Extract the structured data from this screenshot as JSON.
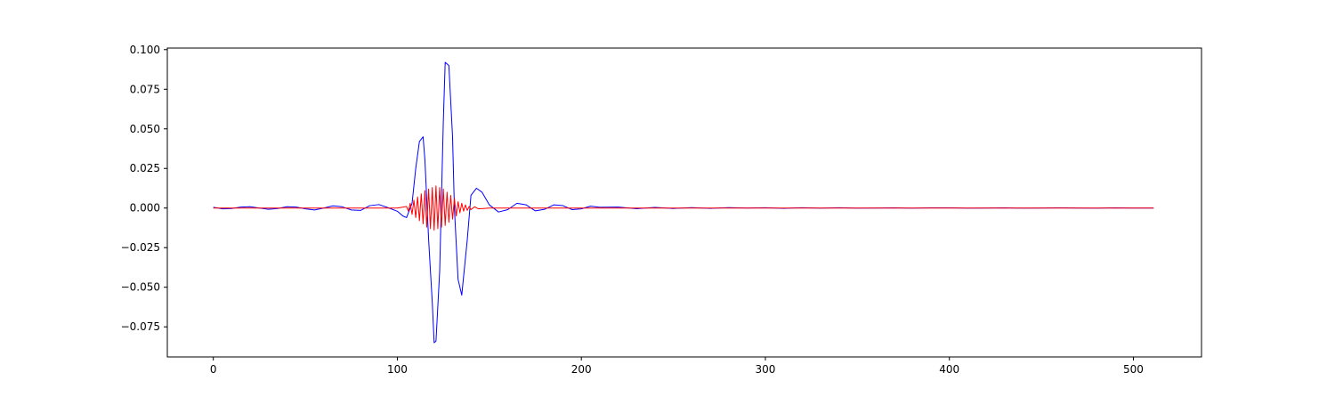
{
  "chart_data": {
    "type": "line",
    "title": "",
    "xlabel": "",
    "ylabel": "",
    "xlim": [
      -25,
      537
    ],
    "ylim": [
      -0.094,
      0.101
    ],
    "xticks": [
      0,
      100,
      200,
      300,
      400,
      500
    ],
    "xtick_labels": [
      "0",
      "100",
      "200",
      "300",
      "400",
      "500"
    ],
    "yticks": [
      -0.075,
      -0.05,
      -0.025,
      0.0,
      0.025,
      0.05,
      0.075,
      0.1
    ],
    "ytick_labels": [
      "−0.075",
      "−0.050",
      "−0.025",
      "0.000",
      "0.025",
      "0.050",
      "0.075",
      "0.100"
    ],
    "grid": false,
    "legend": "none",
    "series": [
      {
        "color": "#0000ff",
        "x": [
          0,
          5,
          10,
          15,
          20,
          25,
          30,
          35,
          40,
          45,
          50,
          55,
          60,
          65,
          70,
          75,
          80,
          85,
          90,
          95,
          100,
          103,
          105,
          108,
          110,
          112,
          114,
          115,
          117,
          119,
          120,
          121,
          123,
          125,
          126,
          128,
          130,
          131,
          133,
          135,
          138,
          140,
          143,
          146,
          150,
          155,
          160,
          165,
          170,
          175,
          180,
          185,
          190,
          195,
          200,
          205,
          210,
          220,
          230,
          240,
          250,
          260,
          270,
          280,
          290,
          300,
          310,
          320,
          330,
          340,
          350,
          360,
          370,
          380,
          390,
          400,
          410,
          420,
          430,
          440,
          450,
          460,
          470,
          480,
          490,
          500,
          511
        ],
        "y": [
          0.0005,
          -0.0005,
          -0.0003,
          0.0006,
          0.0008,
          0.0,
          -0.0008,
          -0.0003,
          0.0008,
          0.0006,
          -0.0005,
          -0.0012,
          0.0,
          0.0014,
          0.0008,
          -0.0012,
          -0.0015,
          0.0015,
          0.0022,
          0.0002,
          -0.002,
          -0.005,
          -0.006,
          0.003,
          0.025,
          0.042,
          0.045,
          0.03,
          -0.02,
          -0.06,
          -0.085,
          -0.084,
          -0.04,
          0.055,
          0.092,
          0.09,
          0.045,
          0.0,
          -0.045,
          -0.055,
          -0.02,
          0.008,
          0.0125,
          0.01,
          0.002,
          -0.0025,
          -0.001,
          0.003,
          0.002,
          -0.0018,
          -0.0008,
          0.002,
          0.0015,
          -0.001,
          -0.0005,
          0.0012,
          0.0005,
          0.0006,
          -0.0004,
          0.0004,
          -0.0003,
          0.0003,
          -0.0002,
          0.0003,
          0.0,
          0.0002,
          -0.0002,
          0.0002,
          -0.0001,
          0.0002,
          -0.0001,
          0.0,
          0.0001,
          -0.0001,
          0.0001,
          0.0001,
          -0.0001,
          0.0,
          0.0001,
          -0.0001,
          0.0,
          0.0001,
          0.0,
          -0.0001,
          0.0001,
          0.0,
          0.0
        ]
      },
      {
        "color": "#ff0000",
        "x": [
          0,
          100,
          105,
          106,
          107,
          108,
          109,
          110,
          111,
          112,
          113,
          114,
          115,
          116,
          117,
          118,
          119,
          120,
          121,
          122,
          123,
          124,
          125,
          126,
          127,
          128,
          129,
          130,
          131,
          132,
          133,
          134,
          135,
          136,
          137,
          138,
          139,
          140,
          142,
          144,
          150,
          200,
          300,
          400,
          511
        ],
        "y": [
          0.0,
          0.0,
          0.001,
          -0.002,
          0.003,
          -0.004,
          0.005,
          -0.006,
          0.007,
          -0.008,
          0.009,
          -0.01,
          0.011,
          -0.012,
          0.012,
          -0.013,
          0.013,
          -0.014,
          0.014,
          -0.013,
          0.013,
          -0.012,
          0.012,
          -0.011,
          0.01,
          -0.009,
          0.008,
          -0.007,
          0.006,
          -0.005,
          0.004,
          -0.003,
          0.003,
          -0.002,
          0.002,
          -0.0015,
          0.001,
          -0.001,
          0.0008,
          -0.0005,
          0.0,
          0.0,
          0.0,
          0.0,
          0.0
        ]
      }
    ]
  }
}
